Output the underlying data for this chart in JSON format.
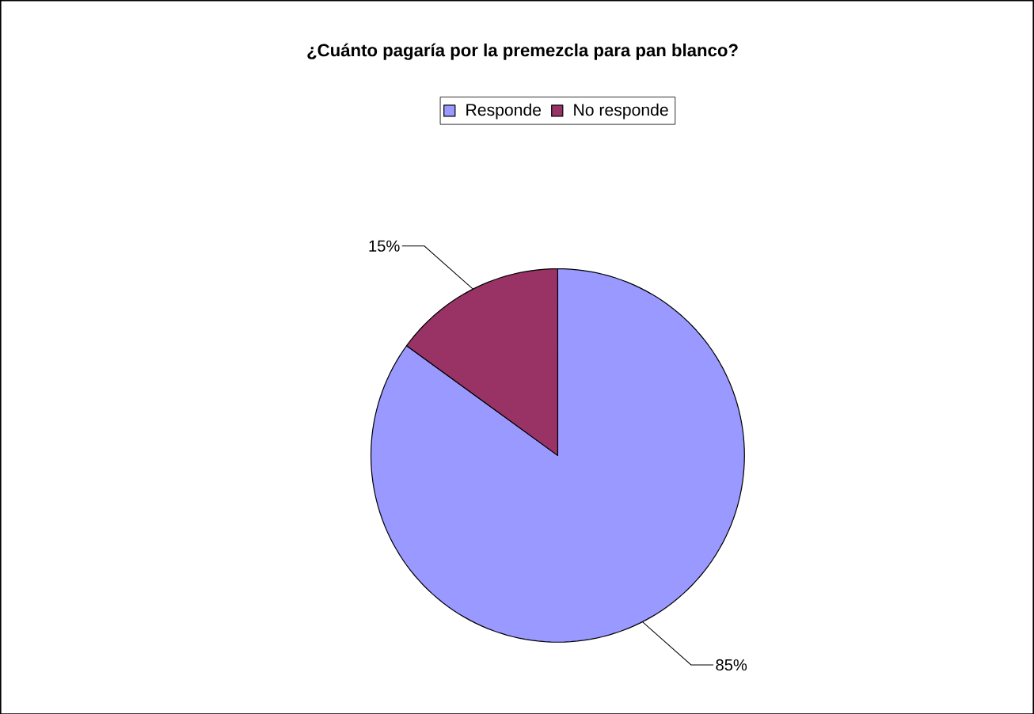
{
  "chart_data": {
    "type": "pie",
    "title": "¿Cuánto pagaría por la premezcla para pan blanco?",
    "categories": [
      "Responde",
      "No responde"
    ],
    "values": [
      85,
      15
    ],
    "colors": [
      "#9999ff",
      "#993366"
    ],
    "value_labels": [
      "85%",
      "15%"
    ],
    "legend": "top"
  }
}
